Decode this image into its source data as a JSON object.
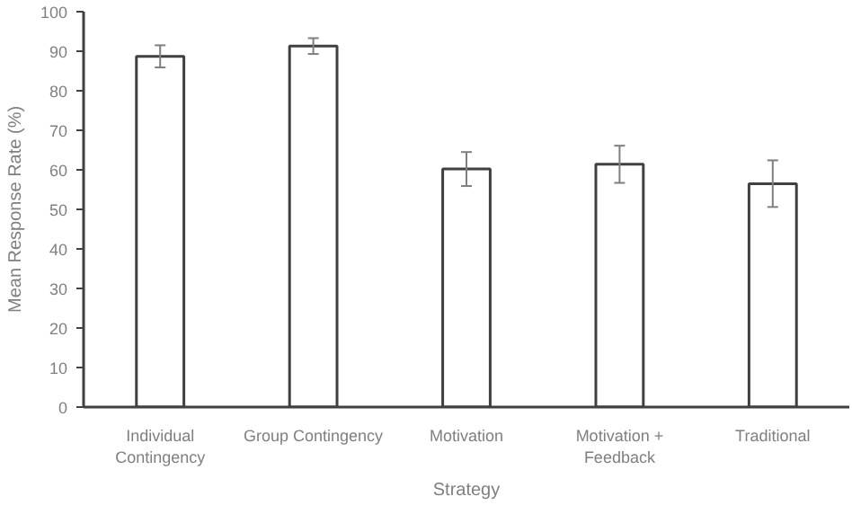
{
  "chart_data": {
    "type": "bar",
    "xlabel": "Strategy",
    "ylabel": "Mean Response Rate (%)",
    "categories": [
      "Individual Contingency",
      "Group Contingency",
      "Motivation",
      "Motivation + Feedback",
      "Traditional"
    ],
    "values": [
      88.7,
      91.3,
      60.2,
      61.4,
      56.5
    ],
    "errors": [
      2.8,
      2.0,
      4.3,
      4.7,
      5.9
    ],
    "color": "#ffffff",
    "ylim": [
      0,
      100
    ],
    "yticks": [
      0,
      10,
      20,
      30,
      40,
      50,
      60,
      70,
      80,
      90,
      100
    ],
    "grid": false
  }
}
